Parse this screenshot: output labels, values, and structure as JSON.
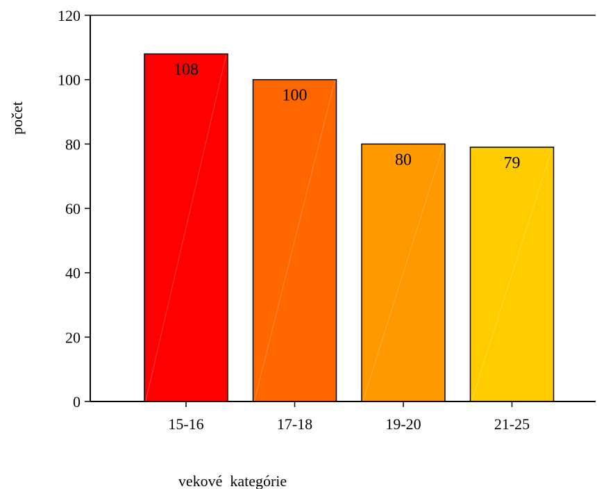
{
  "chart_data": {
    "type": "bar",
    "title": "",
    "xlabel": "vekové  kategórie",
    "ylabel": "počet",
    "categories": [
      "15-16",
      "17-18",
      "19-20",
      "21-25"
    ],
    "values": [
      108,
      100,
      80,
      79
    ],
    "data_labels": [
      "108",
      "100",
      "80",
      "79"
    ],
    "ylim": [
      0,
      120
    ],
    "yticks": [
      0,
      20,
      40,
      60,
      80,
      100,
      120
    ],
    "grid": false,
    "legend": "none",
    "bar_colors": [
      "#ff0000",
      "#ff6600",
      "#ff9900",
      "#ffcc00"
    ],
    "axis_color": "#000000"
  }
}
